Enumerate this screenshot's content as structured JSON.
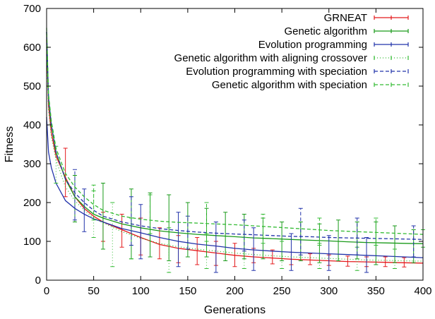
{
  "chart_data": {
    "type": "line",
    "xlabel": "Generations",
    "ylabel": "Fitness",
    "xlim": [
      0,
      400
    ],
    "ylim": [
      0,
      700
    ],
    "xticks": [
      "0",
      "50",
      "100",
      "150",
      "200",
      "250",
      "300",
      "350",
      "400"
    ],
    "yticks": [
      "0",
      "100",
      "200",
      "300",
      "400",
      "500",
      "600",
      "700"
    ],
    "grid": false,
    "legend_position": "top-right",
    "series": [
      {
        "name": "GRNEAT",
        "color": "#e41a1c",
        "dash": "solid",
        "x": [
          0,
          2,
          5,
          10,
          20,
          30,
          40,
          50,
          60,
          80,
          100,
          120,
          140,
          160,
          180,
          200,
          220,
          240,
          260,
          280,
          300,
          320,
          340,
          360,
          380,
          400
        ],
        "y": [
          620,
          450,
          380,
          320,
          265,
          215,
          185,
          165,
          150,
          130,
          110,
          92,
          82,
          76,
          70,
          64,
          60,
          57,
          54,
          52,
          50,
          48,
          47,
          46,
          45,
          44
        ],
        "err_x": [
          20,
          60,
          80,
          100,
          120,
          140,
          160,
          180,
          200,
          220,
          240,
          260,
          280,
          300,
          320,
          340,
          360,
          380
        ],
        "err_lo": [
          215,
          100,
          85,
          65,
          55,
          45,
          40,
          38,
          35,
          45,
          42,
          40,
          40,
          38,
          36,
          35,
          35,
          34
        ],
        "err_hi": [
          340,
          175,
          170,
          160,
          135,
          115,
          110,
          100,
          95,
          82,
          78,
          72,
          68,
          65,
          62,
          60,
          60,
          58
        ]
      },
      {
        "name": "Genetic algorithm",
        "color": "#1a9a1a",
        "dash": "solid",
        "x": [
          0,
          2,
          5,
          10,
          20,
          30,
          40,
          50,
          60,
          80,
          100,
          120,
          140,
          160,
          180,
          200,
          220,
          240,
          260,
          280,
          300,
          320,
          340,
          360,
          380,
          400
        ],
        "y": [
          640,
          470,
          400,
          330,
          260,
          215,
          190,
          170,
          160,
          145,
          135,
          127,
          122,
          118,
          115,
          112,
          109,
          107,
          105,
          103,
          101,
          99,
          97,
          96,
          95,
          94
        ],
        "err_x": [
          30,
          60,
          90,
          110,
          130,
          150,
          170,
          190,
          210,
          230,
          250,
          270,
          290,
          310,
          330,
          350,
          370,
          390
        ],
        "err_lo": [
          150,
          80,
          55,
          60,
          50,
          60,
          60,
          50,
          55,
          55,
          50,
          50,
          45,
          50,
          55,
          40,
          45,
          45
        ],
        "err_hi": [
          270,
          250,
          235,
          225,
          220,
          200,
          185,
          175,
          170,
          160,
          150,
          150,
          145,
          155,
          150,
          150,
          140,
          130
        ]
      },
      {
        "name": "Evolution programming",
        "color": "#2233aa",
        "dash": "solid",
        "x": [
          0,
          2,
          5,
          10,
          20,
          30,
          40,
          50,
          60,
          80,
          100,
          120,
          140,
          160,
          180,
          200,
          220,
          240,
          260,
          280,
          300,
          320,
          340,
          360,
          380,
          400
        ],
        "y": [
          420,
          330,
          290,
          250,
          205,
          185,
          170,
          158,
          150,
          133,
          122,
          110,
          100,
          93,
          88,
          82,
          78,
          75,
          72,
          70,
          68,
          66,
          64,
          62,
          60,
          58
        ],
        "err_x": [
          40,
          100,
          140,
          180,
          220,
          260,
          300,
          340
        ],
        "err_lo": [
          125,
          55,
          35,
          20,
          25,
          25,
          25,
          20
        ],
        "err_hi": [
          235,
          195,
          175,
          150,
          135,
          120,
          115,
          110
        ]
      },
      {
        "name": "Genetic algorithm with aligning crossover",
        "color": "#33bb33",
        "dash": "1,3",
        "x": [
          0,
          2,
          5,
          10,
          20,
          30,
          40,
          50,
          60,
          80,
          100,
          120,
          140,
          160,
          180,
          200,
          220,
          240,
          260,
          280,
          300,
          320,
          340,
          360,
          380,
          400
        ],
        "y": [
          600,
          440,
          370,
          310,
          240,
          205,
          180,
          160,
          148,
          125,
          108,
          95,
          86,
          80,
          75,
          70,
          66,
          63,
          60,
          58,
          56,
          54,
          52,
          51,
          50,
          49
        ],
        "err_x": [
          10,
          50,
          70,
          90,
          130,
          170,
          210,
          250,
          290,
          330,
          370
        ],
        "err_lo": [
          250,
          110,
          35,
          55,
          20,
          30,
          30,
          30,
          30,
          25,
          30
        ],
        "err_hi": [
          345,
          230,
          200,
          160,
          135,
          120,
          110,
          100,
          90,
          85,
          80
        ]
      },
      {
        "name": "Evolution programming with speciation",
        "color": "#2233aa",
        "dash": "5,3",
        "x": [
          0,
          2,
          5,
          10,
          20,
          30,
          40,
          50,
          60,
          80,
          100,
          120,
          140,
          160,
          180,
          200,
          220,
          240,
          260,
          280,
          300,
          320,
          340,
          360,
          380,
          400
        ],
        "y": [
          640,
          470,
          400,
          330,
          260,
          225,
          200,
          180,
          165,
          150,
          140,
          133,
          128,
          124,
          121,
          119,
          117,
          115,
          113,
          112,
          110,
          109,
          108,
          107,
          106,
          105
        ],
        "err_x": [
          30,
          90,
          150,
          210,
          270,
          330,
          390
        ],
        "err_lo": [
          155,
          90,
          80,
          75,
          65,
          65,
          60
        ],
        "err_hi": [
          285,
          215,
          165,
          155,
          185,
          160,
          140
        ]
      },
      {
        "name": "Genetic algorithm with speciation",
        "color": "#33bb33",
        "dash": "5,3",
        "x": [
          0,
          2,
          5,
          10,
          20,
          30,
          40,
          50,
          60,
          80,
          100,
          120,
          140,
          160,
          180,
          200,
          220,
          240,
          260,
          280,
          300,
          320,
          340,
          360,
          380,
          400
        ],
        "y": [
          650,
          480,
          410,
          340,
          275,
          240,
          215,
          195,
          180,
          165,
          157,
          152,
          149,
          147,
          145,
          143,
          140,
          137,
          134,
          131,
          128,
          126,
          124,
          122,
          120,
          118
        ],
        "err_x": [
          50,
          110,
          170,
          230,
          290,
          350,
          400
        ],
        "err_lo": [
          155,
          120,
          100,
          95,
          95,
          90,
          85
        ],
        "err_hi": [
          245,
          220,
          200,
          170,
          160,
          160,
          130
        ]
      }
    ]
  }
}
